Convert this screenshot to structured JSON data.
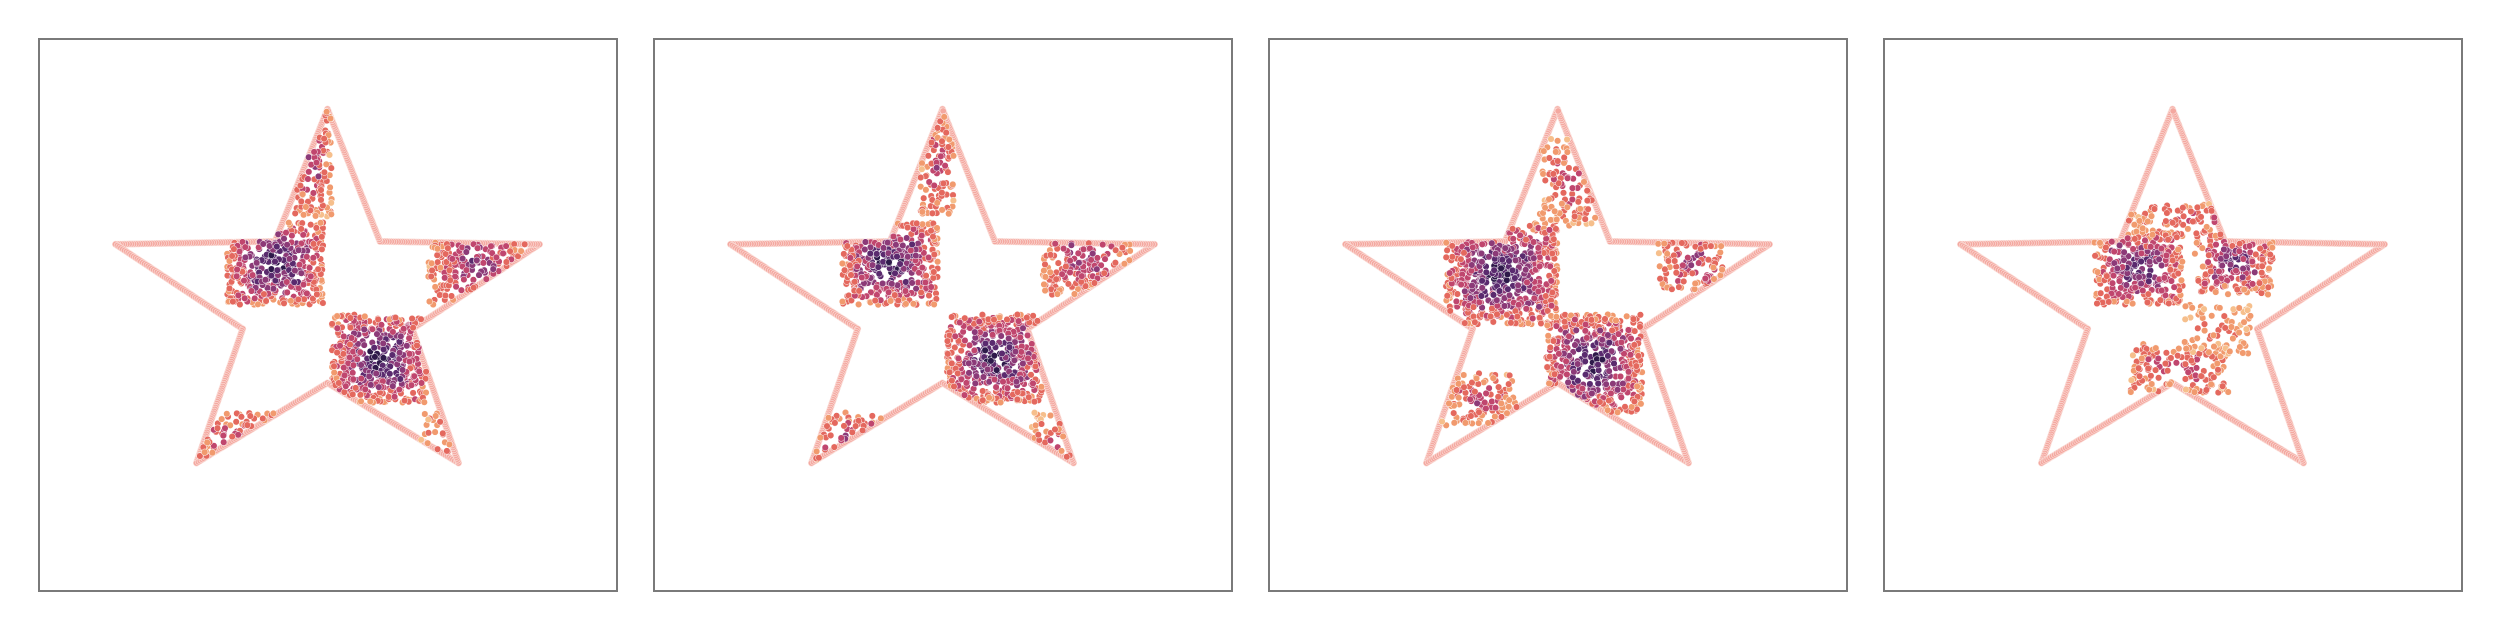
{
  "chart_data": [
    {
      "type": "scatter",
      "boundary_color": "#f4a8a0",
      "point_palette": [
        "#2e1a4a",
        "#5a2a6e",
        "#8c3a78",
        "#c0466e",
        "#e4685e",
        "#f19a6e",
        "#f6bf8c"
      ],
      "regions": [
        {
          "x": [
            -0.45,
            -0.02
          ],
          "y": [
            0.0,
            0.42
          ],
          "density": 1.0
        },
        {
          "x": [
            0.02,
            0.45
          ],
          "y": [
            -0.5,
            -0.05
          ],
          "density": 1.0
        },
        {
          "x": [
            0.45,
            0.9
          ],
          "y": [
            0.0,
            0.42
          ],
          "density": 0.7
        },
        {
          "x": [
            -0.15,
            0.02
          ],
          "y": [
            0.45,
            1.05
          ],
          "density": 0.6
        },
        {
          "x": [
            -0.6,
            -0.2
          ],
          "y": [
            -0.88,
            -0.55
          ],
          "density": 0.6
        },
        {
          "x": [
            0.42,
            0.58
          ],
          "y": [
            -0.95,
            -0.55
          ],
          "density": 0.4
        }
      ]
    },
    {
      "type": "scatter",
      "boundary_color": "#f4a8a0",
      "point_palette": [
        "#2e1a4a",
        "#5a2a6e",
        "#8c3a78",
        "#c0466e",
        "#e4685e",
        "#f19a6e",
        "#f6bf8c"
      ],
      "regions": [
        {
          "x": [
            -0.45,
            -0.02
          ],
          "y": [
            0.0,
            0.42
          ],
          "density": 1.0
        },
        {
          "x": [
            0.02,
            0.45
          ],
          "y": [
            -0.5,
            -0.05
          ],
          "density": 1.0
        },
        {
          "x": [
            0.45,
            0.85
          ],
          "y": [
            0.05,
            0.42
          ],
          "density": 0.7
        },
        {
          "x": [
            -0.1,
            0.05
          ],
          "y": [
            0.45,
            1.0
          ],
          "density": 0.55
        },
        {
          "x": [
            -0.62,
            -0.22
          ],
          "y": [
            -0.85,
            -0.55
          ],
          "density": 0.6
        },
        {
          "x": [
            0.4,
            0.6
          ],
          "y": [
            -0.9,
            -0.55
          ],
          "density": 0.45
        }
      ]
    },
    {
      "type": "scatter",
      "boundary_color": "#f4a8a0",
      "point_palette": [
        "#2e1a4a",
        "#5a2a6e",
        "#8c3a78",
        "#c0466e",
        "#e4685e",
        "#f19a6e",
        "#f6bf8c"
      ],
      "regions": [
        {
          "x": [
            -0.5,
            0.0
          ],
          "y": [
            -0.1,
            0.42
          ],
          "density": 1.0
        },
        {
          "x": [
            -0.05,
            0.38
          ],
          "y": [
            -0.55,
            -0.05
          ],
          "density": 1.0
        },
        {
          "x": [
            0.45,
            0.75
          ],
          "y": [
            0.05,
            0.38
          ],
          "density": 0.6
        },
        {
          "x": [
            -0.08,
            0.2
          ],
          "y": [
            0.4,
            0.85
          ],
          "density": 0.5
        },
        {
          "x": [
            -0.52,
            -0.18
          ],
          "y": [
            -0.62,
            -0.35
          ],
          "density": 0.55
        }
      ]
    },
    {
      "type": "scatter",
      "boundary_color": "#f4a8a0",
      "point_palette": [
        "#2e1a4a",
        "#5a2a6e",
        "#8c3a78",
        "#c0466e",
        "#e4685e",
        "#f19a6e",
        "#f6bf8c"
      ],
      "regions": [
        {
          "x": [
            -0.35,
            0.05
          ],
          "y": [
            0.0,
            0.38
          ],
          "density": 0.9
        },
        {
          "x": [
            0.1,
            0.45
          ],
          "y": [
            0.05,
            0.38
          ],
          "density": 0.8
        },
        {
          "x": [
            -0.2,
            0.35
          ],
          "y": [
            0.38,
            0.52
          ],
          "density": 0.5
        },
        {
          "x": [
            -0.2,
            0.25
          ],
          "y": [
            -0.45,
            -0.2
          ],
          "density": 0.55
        },
        {
          "x": [
            0.05,
            0.35
          ],
          "y": [
            -0.25,
            0.0
          ],
          "density": 0.35
        }
      ]
    }
  ]
}
